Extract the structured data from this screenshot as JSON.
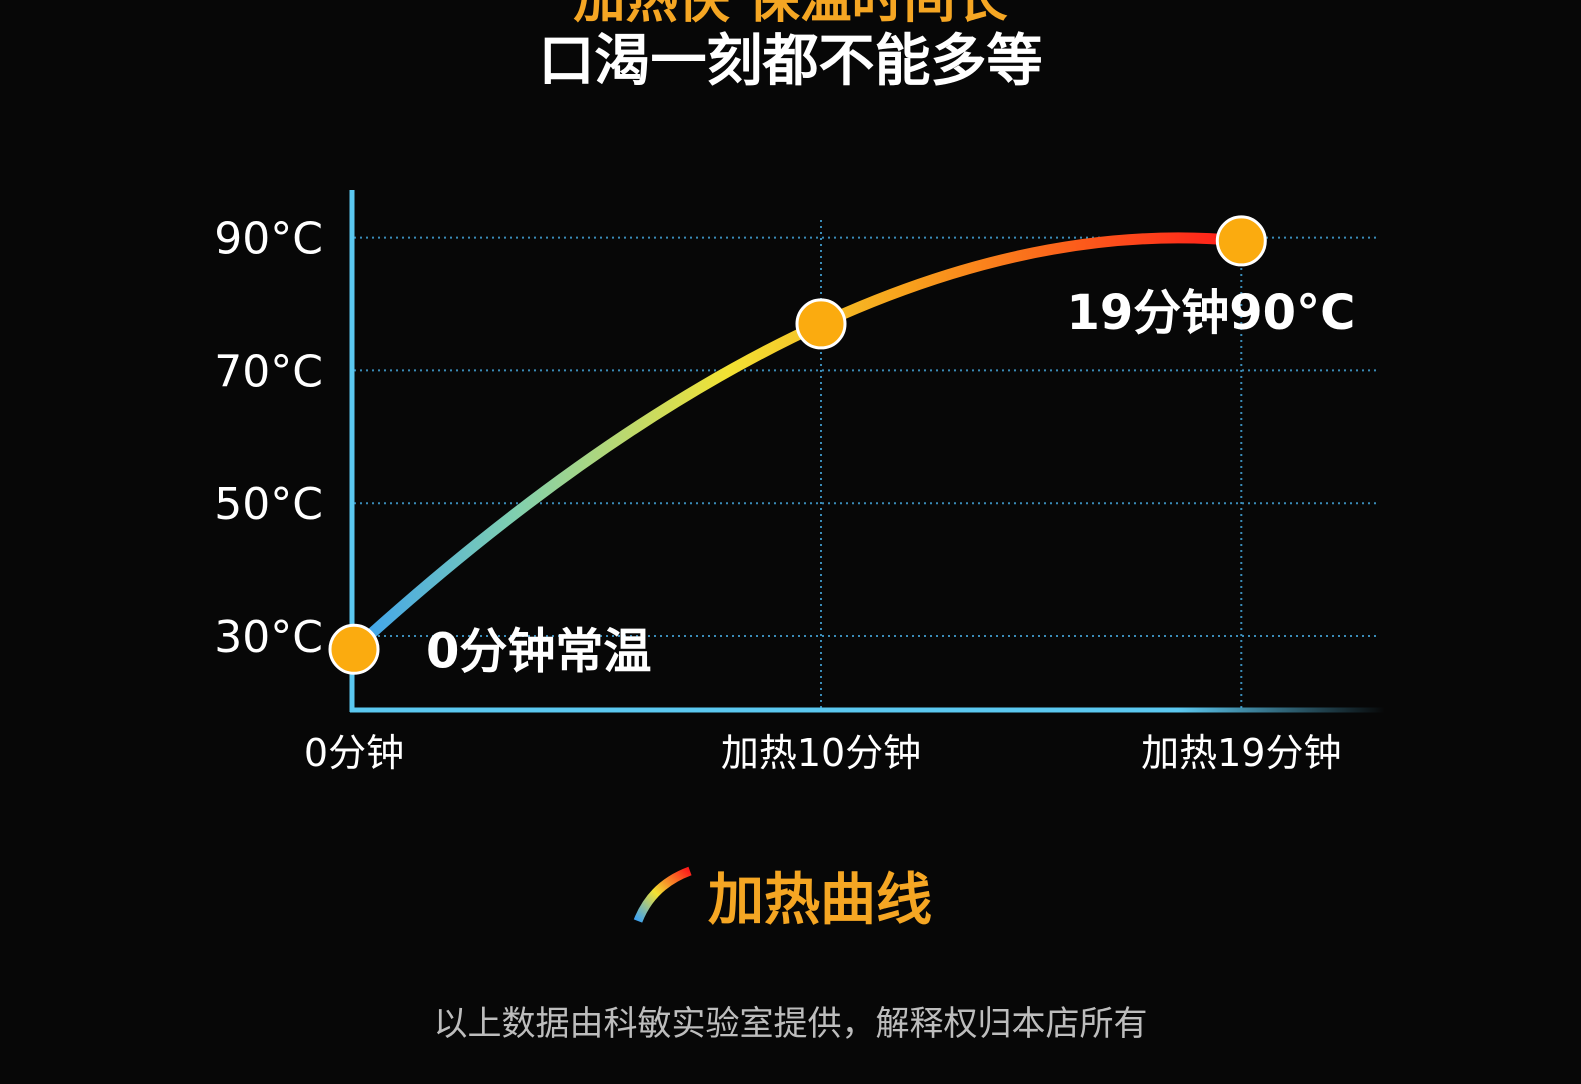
{
  "header": {
    "title": "加热快 保温时间长",
    "subtitle": "口渴一刻都不能多等"
  },
  "colors": {
    "accent": "#f5a623",
    "axis": "#5bc8f0",
    "grid": "#3a8cb8",
    "marker": "#fbab0f",
    "curve_start": "#3da2f0",
    "curve_mid": "#f2e233",
    "curve_end": "#ff1a1a"
  },
  "chart_data": {
    "type": "line",
    "title": "",
    "xlabel": "",
    "ylabel": "",
    "x_ticks": [
      {
        "x": 0,
        "label": "0分钟"
      },
      {
        "x": 10,
        "label": "加热10分钟"
      },
      {
        "x": 19,
        "label": "加热19分钟"
      }
    ],
    "y_ticks": [
      {
        "y": 30,
        "label": "30°C"
      },
      {
        "y": 50,
        "label": "50°C"
      },
      {
        "y": 70,
        "label": "70°C"
      },
      {
        "y": 90,
        "label": "90°C"
      }
    ],
    "xlim": [
      0,
      21.5
    ],
    "ylim": [
      19,
      97
    ],
    "grid": true,
    "series": [
      {
        "name": "",
        "points": [
          {
            "x": 0,
            "y": 28
          },
          {
            "x": 10,
            "y": 77
          },
          {
            "x": 19,
            "y": 89.5
          }
        ]
      }
    ],
    "annotations": [
      {
        "x": 0,
        "y": 28,
        "text": "0分钟常温"
      },
      {
        "x": 19,
        "y": 89.5,
        "text": "19分钟90°C"
      }
    ],
    "legend": {
      "label": "加热曲线",
      "placement": "bottom-center"
    }
  },
  "footer": {
    "note": "以上数据由科敏实验室提供，解释权归本店所有"
  }
}
